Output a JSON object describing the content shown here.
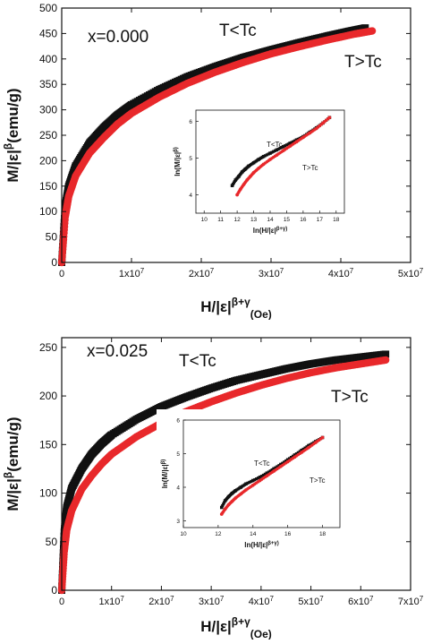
{
  "chart_data": [
    {
      "type": "scatter",
      "composition": "x=0.000",
      "ylabel": "M/|ε|^β(emu/g)",
      "xlabel": "H/|ε|^β+γ(Oe)",
      "xlim": [
        0,
        50000000
      ],
      "ylim": [
        0,
        500
      ],
      "xticks": [
        0,
        10000000,
        20000000,
        30000000,
        40000000,
        50000000
      ],
      "xtick_labels": [
        "0",
        "1x10^7",
        "2x10^7",
        "3x10^7",
        "4x10^7",
        "5x10^7"
      ],
      "yticks": [
        0,
        50,
        100,
        150,
        200,
        250,
        300,
        350,
        400,
        450,
        500
      ],
      "grid": false,
      "series": [
        {
          "name": "T<Tc",
          "color": "#111111",
          "marker": "square",
          "x": [
            0,
            500000,
            1000000,
            2000000,
            4000000,
            6000000,
            8000000,
            10000000,
            14000000,
            18000000,
            22000000,
            26000000,
            30000000,
            34000000,
            38000000,
            41000000,
            43500000
          ],
          "y": [
            0,
            110,
            150,
            190,
            235,
            265,
            290,
            310,
            340,
            365,
            385,
            403,
            418,
            432,
            445,
            454,
            461
          ]
        },
        {
          "name": "T>Tc",
          "color": "#e8282b",
          "marker": "circle",
          "x": [
            0,
            500000,
            1000000,
            2000000,
            4000000,
            6000000,
            8000000,
            10000000,
            14000000,
            18000000,
            22000000,
            26000000,
            30000000,
            34000000,
            38000000,
            42000000,
            44500000
          ],
          "y": [
            0,
            90,
            130,
            170,
            215,
            245,
            272,
            293,
            325,
            352,
            374,
            393,
            410,
            424,
            437,
            449,
            455
          ]
        }
      ],
      "inset": {
        "xlabel": "ln(H/|ε|^β+γ)",
        "ylabel": "ln(M/|ε|^β)",
        "xlim": [
          9.5,
          18.5
        ],
        "ylim": [
          3.5,
          6.3
        ],
        "xticks": [
          10,
          11,
          12,
          13,
          14,
          15,
          16,
          17,
          18
        ],
        "yticks": [
          4,
          5,
          6
        ],
        "series": [
          {
            "name": "T<Tc",
            "color": "#111111",
            "marker": "square",
            "x": [
              11.7,
              11.9,
              12.1,
              12.3,
              12.5,
              12.7,
              13.0,
              13.3,
              13.6,
              14.0,
              14.4,
              14.8,
              15.2,
              15.6,
              16.0,
              16.4,
              16.8,
              17.2,
              17.6
            ],
            "y": [
              4.25,
              4.4,
              4.5,
              4.62,
              4.7,
              4.78,
              4.87,
              4.96,
              5.04,
              5.13,
              5.22,
              5.31,
              5.4,
              5.49,
              5.58,
              5.7,
              5.82,
              5.95,
              6.1
            ]
          },
          {
            "name": "T>Tc",
            "color": "#e8282b",
            "marker": "circle",
            "x": [
              12.0,
              12.2,
              12.4,
              12.6,
              12.8,
              13.0,
              13.3,
              13.6,
              14.0,
              14.4,
              14.8,
              15.2,
              15.6,
              16.0,
              16.4,
              16.8,
              17.2,
              17.6
            ],
            "y": [
              4.0,
              4.15,
              4.28,
              4.4,
              4.5,
              4.6,
              4.72,
              4.83,
              4.96,
              5.08,
              5.2,
              5.32,
              5.44,
              5.56,
              5.68,
              5.8,
              5.95,
              6.1
            ]
          }
        ]
      }
    },
    {
      "type": "scatter",
      "composition": "x=0.025",
      "ylabel": "M/|ε|^β(emu/g)",
      "xlabel": "H/|ε|^β+γ(Oe)",
      "xlim": [
        0,
        70000000
      ],
      "ylim": [
        0,
        260
      ],
      "xticks": [
        0,
        10000000,
        20000000,
        30000000,
        40000000,
        50000000,
        60000000,
        70000000
      ],
      "xtick_labels": [
        "0",
        "1x10^7",
        "2x10^7",
        "3x10^7",
        "4x10^7",
        "5x10^7",
        "6x10^7",
        "7x10^7"
      ],
      "yticks": [
        0,
        50,
        100,
        150,
        200,
        250
      ],
      "grid": false,
      "series": [
        {
          "name": "T<Tc",
          "color": "#111111",
          "marker": "square",
          "x": [
            0,
            500000,
            1000000,
            2000000,
            4000000,
            6000000,
            8000000,
            10000000,
            15000000,
            20000000,
            25000000,
            30000000,
            35000000,
            40000000,
            45000000,
            50000000,
            55000000,
            60000000,
            65000000
          ],
          "y": [
            0,
            60,
            85,
            105,
            125,
            140,
            151,
            160,
            176,
            189,
            199,
            208,
            216,
            222,
            228,
            233,
            237,
            240,
            243
          ]
        },
        {
          "name": "T>Tc",
          "color": "#e8282b",
          "marker": "circle",
          "x": [
            0,
            500000,
            1000000,
            2000000,
            4000000,
            6000000,
            8000000,
            10000000,
            15000000,
            20000000,
            25000000,
            30000000,
            35000000,
            40000000,
            45000000,
            50000000,
            55000000,
            60000000,
            65000000
          ],
          "y": [
            0,
            40,
            62,
            82,
            104,
            118,
            130,
            140,
            158,
            172,
            184,
            194,
            203,
            211,
            218,
            224,
            229,
            233,
            237
          ]
        }
      ],
      "inset": {
        "xlabel": "ln(H/|ε|^β+γ)",
        "ylabel": "ln(M/|ε|^β)",
        "xlim": [
          10,
          19
        ],
        "ylim": [
          2.8,
          6.0
        ],
        "xticks": [
          10,
          12,
          14,
          16,
          18
        ],
        "yticks": [
          3,
          4,
          5,
          6
        ],
        "series": [
          {
            "name": "T<Tc",
            "color": "#111111",
            "marker": "square",
            "x": [
              12.2,
              12.4,
              12.6,
              12.8,
              13.0,
              13.3,
              13.6,
              14.0,
              14.4,
              14.8,
              15.2,
              15.6,
              16.0,
              16.4,
              16.8,
              17.2,
              17.6,
              18.0
            ],
            "y": [
              3.4,
              3.6,
              3.72,
              3.82,
              3.9,
              4.0,
              4.1,
              4.2,
              4.3,
              4.42,
              4.55,
              4.68,
              4.82,
              4.96,
              5.1,
              5.24,
              5.36,
              5.48
            ]
          },
          {
            "name": "T>Tc",
            "color": "#e8282b",
            "marker": "circle",
            "x": [
              12.2,
              12.4,
              12.6,
              12.8,
              13.0,
              13.3,
              13.6,
              14.0,
              14.4,
              14.8,
              15.2,
              15.6,
              16.0,
              16.4,
              16.8,
              17.2,
              17.6,
              18.0
            ],
            "y": [
              3.2,
              3.35,
              3.48,
              3.58,
              3.68,
              3.8,
              3.92,
              4.06,
              4.2,
              4.34,
              4.48,
              4.62,
              4.76,
              4.9,
              5.04,
              5.18,
              5.33,
              5.48
            ]
          }
        ]
      }
    }
  ]
}
